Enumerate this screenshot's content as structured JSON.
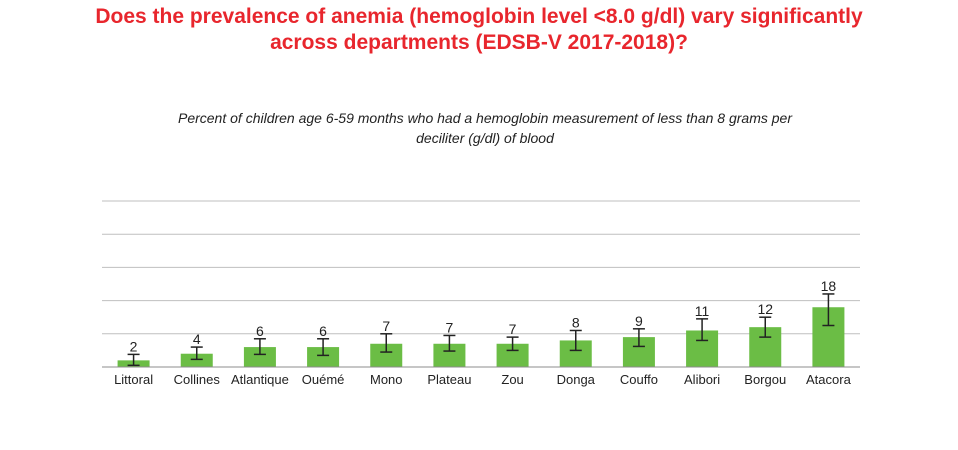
{
  "title": {
    "line1": "Does the prevalence of anemia (hemoglobin level <8.0 g/dl) vary significantly",
    "line2": "across departments (EDSB-V 2017-2018)?"
  },
  "chart_data": {
    "type": "bar",
    "subtitle_line1": "Percent of children age 6-59 months who had a hemoglobin measurement of less than 8 grams per",
    "subtitle_line2": "deciliter (g/dl) of blood",
    "categories": [
      "Littoral",
      "Collines",
      "Atlantique",
      "Ouémé",
      "Mono",
      "Plateau",
      "Zou",
      "Donga",
      "Couffo",
      "Alibori",
      "Borgou",
      "Atacora"
    ],
    "values": [
      2,
      4,
      6,
      6,
      7,
      7,
      7,
      8,
      9,
      11,
      12,
      18
    ],
    "ci_low": [
      0.5,
      2.3,
      3.8,
      3.5,
      4.5,
      4.8,
      5.0,
      5.0,
      6.2,
      8.0,
      9.0,
      12.5
    ],
    "ci_high": [
      3.8,
      6.0,
      8.5,
      8.5,
      10.0,
      9.5,
      9.0,
      11.0,
      11.5,
      14.5,
      15.0,
      22.0
    ],
    "ylim": [
      0,
      50
    ],
    "grid": true,
    "bar_color": "#6bbd45",
    "error_bar_color": "#222222",
    "grid_color": "#bfbfbf",
    "title_color": "#e8262d"
  }
}
